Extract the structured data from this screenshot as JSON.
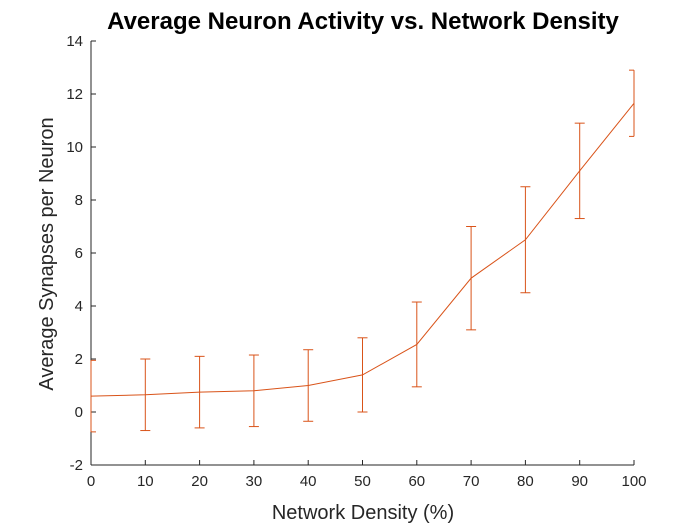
{
  "chart_data": {
    "type": "line",
    "title": "Average Neuron Activity vs. Network Density",
    "xlabel": "Network Density (%)",
    "ylabel": "Average Synapses per Neuron",
    "xlim": [
      0,
      100
    ],
    "ylim": [
      -2,
      14
    ],
    "x_ticks": [
      0,
      10,
      20,
      30,
      40,
      50,
      60,
      70,
      80,
      90,
      100
    ],
    "y_ticks": [
      -2,
      0,
      2,
      4,
      6,
      8,
      10,
      12,
      14
    ],
    "grid": false,
    "legend": false,
    "error_bars": true,
    "series": [
      {
        "color": "#D95319",
        "x": [
          0,
          10,
          20,
          30,
          40,
          50,
          60,
          70,
          80,
          90,
          100
        ],
        "y": [
          0.6,
          0.65,
          0.75,
          0.8,
          1.0,
          1.4,
          2.55,
          5.05,
          6.5,
          9.1,
          11.65
        ],
        "err_low": [
          1.35,
          1.35,
          1.35,
          1.35,
          1.35,
          1.4,
          1.6,
          1.95,
          2.0,
          1.8,
          1.25
        ],
        "err_high": [
          1.35,
          1.35,
          1.35,
          1.35,
          1.35,
          1.4,
          1.6,
          1.95,
          2.0,
          1.8,
          1.25
        ]
      }
    ]
  },
  "style": {
    "axis_color": "#262626",
    "line_color": "#D95319",
    "background": "#ffffff"
  }
}
